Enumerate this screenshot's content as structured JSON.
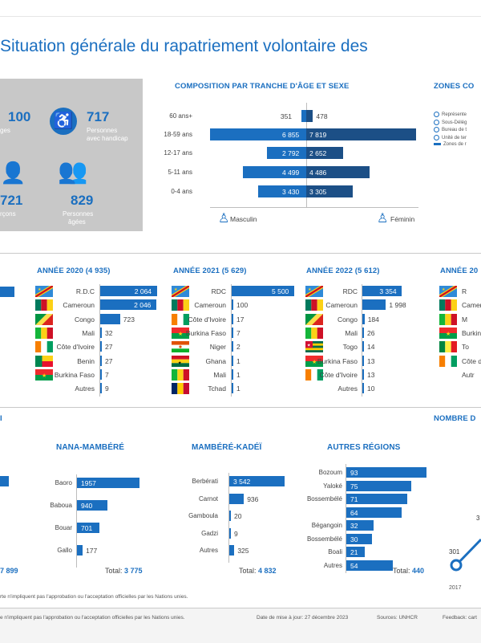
{
  "title": "Situation générale du rapatriement volontaire des",
  "stats": {
    "refugees_value": "100",
    "refugees_label": "ges",
    "handicap_value": "717",
    "handicap_label1": "Personnes",
    "handicap_label2": "avec handicap",
    "boys_value": "721",
    "boys_label": "rçons",
    "elderly_value": "829",
    "elderly_label1": "Personnes",
    "elderly_label2": "âgées"
  },
  "pyramid": {
    "title": "COMPOSITION PAR TRANCHE D'ÂGE ET SEXE",
    "legend_male": "Masculin",
    "legend_female": "Féminin"
  },
  "zones": {
    "title": "ZONES CO",
    "items": [
      "Représente",
      "Sous-Délég",
      "Bureau de t",
      "Unité de ter",
      "Zones de r"
    ]
  },
  "chart_data": [
    {
      "type": "bar",
      "title": "COMPOSITION PAR TRANCHE D'ÂGE ET SEXE",
      "categories": [
        "60 ans+",
        "18-59 ans",
        "12-17 ans",
        "5-11 ans",
        "0-4 ans"
      ],
      "series": [
        {
          "name": "Masculin",
          "values": [
            351,
            6855,
            2792,
            4499,
            3430
          ],
          "labels": [
            "351",
            "6 855",
            "2 792",
            "4 499",
            "3 430"
          ]
        },
        {
          "name": "Féminin",
          "values": [
            478,
            7819,
            2652,
            4486,
            3305
          ],
          "labels": [
            "478",
            "7 819",
            "2 652",
            "4 486",
            "3 305"
          ]
        }
      ],
      "xlim": [
        0,
        8000
      ]
    },
    {
      "type": "bar",
      "title": "ANNÉE 2020 (4 935)",
      "categories": [
        "R.D.C",
        "Cameroun",
        "Congo",
        "Mali",
        "Côte d'Ivoire",
        "Benin",
        "Burkina Faso",
        "Autres"
      ],
      "values": [
        2064,
        2046,
        723,
        32,
        27,
        27,
        7,
        9
      ],
      "labels": [
        "2 064",
        "2 046",
        "723",
        "32",
        "27",
        "27",
        "7",
        "9"
      ],
      "xlim": [
        0,
        2100
      ]
    },
    {
      "type": "bar",
      "title": "ANNÉE 2021 (5 629)",
      "categories": [
        "RDC",
        "Cameroun",
        "Côte d'Ivoire",
        "Burkina Faso",
        "Niger",
        "Ghana",
        "Mali",
        "Tchad"
      ],
      "values": [
        5500,
        100,
        17,
        7,
        2,
        1,
        1,
        1
      ],
      "labels": [
        "5 500",
        "100",
        "17",
        "7",
        "2",
        "1",
        "1",
        "1"
      ],
      "xlim": [
        0,
        5500
      ]
    },
    {
      "type": "bar",
      "title": "ANNÉE 2022 (5 612)",
      "categories": [
        "RDC",
        "Cameroun",
        "Congo",
        "Mali",
        "Togo",
        "Burkina Faso",
        "Côte d'Ivoire",
        "Autres"
      ],
      "values": [
        3354,
        1998,
        184,
        26,
        14,
        13,
        13,
        10
      ],
      "labels": [
        "3 354",
        "1 998",
        "184",
        "26",
        "14",
        "13",
        "13",
        "10"
      ],
      "xlim": [
        0,
        3400
      ]
    },
    {
      "type": "bar",
      "title": "NANA-MAMBÉRÉ",
      "categories": [
        "Baoro",
        "Baboua",
        "Bouar",
        "Gallo"
      ],
      "values": [
        1957,
        940,
        701,
        177
      ],
      "labels": [
        "1957",
        "940",
        "701",
        "177"
      ],
      "total": "3 775",
      "xlim": [
        0,
        2000
      ]
    },
    {
      "type": "bar",
      "title": "MAMBÉRÉ-KADÉÏ",
      "categories": [
        "Berbérati",
        "Carnot",
        "Gamboula",
        "Gadzi",
        "Autres"
      ],
      "values": [
        3542,
        936,
        20,
        9,
        325
      ],
      "labels": [
        "3 542",
        "936",
        "20",
        "9",
        "325"
      ],
      "total": "4 832",
      "xlim": [
        0,
        3600
      ]
    },
    {
      "type": "bar",
      "title": "AUTRES RÉGIONS",
      "categories": [
        "Bozoum",
        "Yaloké",
        "Bossembélé",
        "",
        "Bégangoin",
        "Bossembélé",
        "Boali",
        "Autres"
      ],
      "values": [
        93,
        75,
        71,
        64,
        32,
        30,
        21,
        54
      ],
      "labels": [
        "93",
        "75",
        "71",
        "64",
        "32",
        "30",
        "21",
        "54"
      ],
      "total": "440",
      "xlim": [
        0,
        95
      ]
    }
  ],
  "years": {
    "y2020_title": "ANNÉE 2020 (4 935)",
    "y2021_title": "ANNÉE 2021 (5 629)",
    "y2022_title": "ANNÉE 2022 (5 612)",
    "y2023_title": "ANNÉE 20",
    "y2023_names": [
      "R",
      "Camero",
      "M",
      "Burkina F",
      "To",
      "Côte d'I",
      "Autr"
    ]
  },
  "regions": {
    "nombre_title": "NOMBRE D",
    "left_total": "7 899",
    "total_prefix": "Total:",
    "line_val_301": "301",
    "line_val_3": "3",
    "year_2017": "2017"
  },
  "notes": {
    "disclaimer": "rte n'impliquent pas l'approbation ou l'acceptation officielles par les Nations unies.",
    "footer_left": "e n'impliquent pas l'approbation ou l'acceptation officielles par les Nations unies.",
    "footer_date": "Date de mise à jour: 27 décembre 2023",
    "footer_source": "Sources: UNHCR",
    "footer_feedback": "Feedback: cart"
  },
  "colors": {
    "primary": "#1b6fc0",
    "dark": "#1c4f86",
    "panel": "#c8c8c8"
  }
}
